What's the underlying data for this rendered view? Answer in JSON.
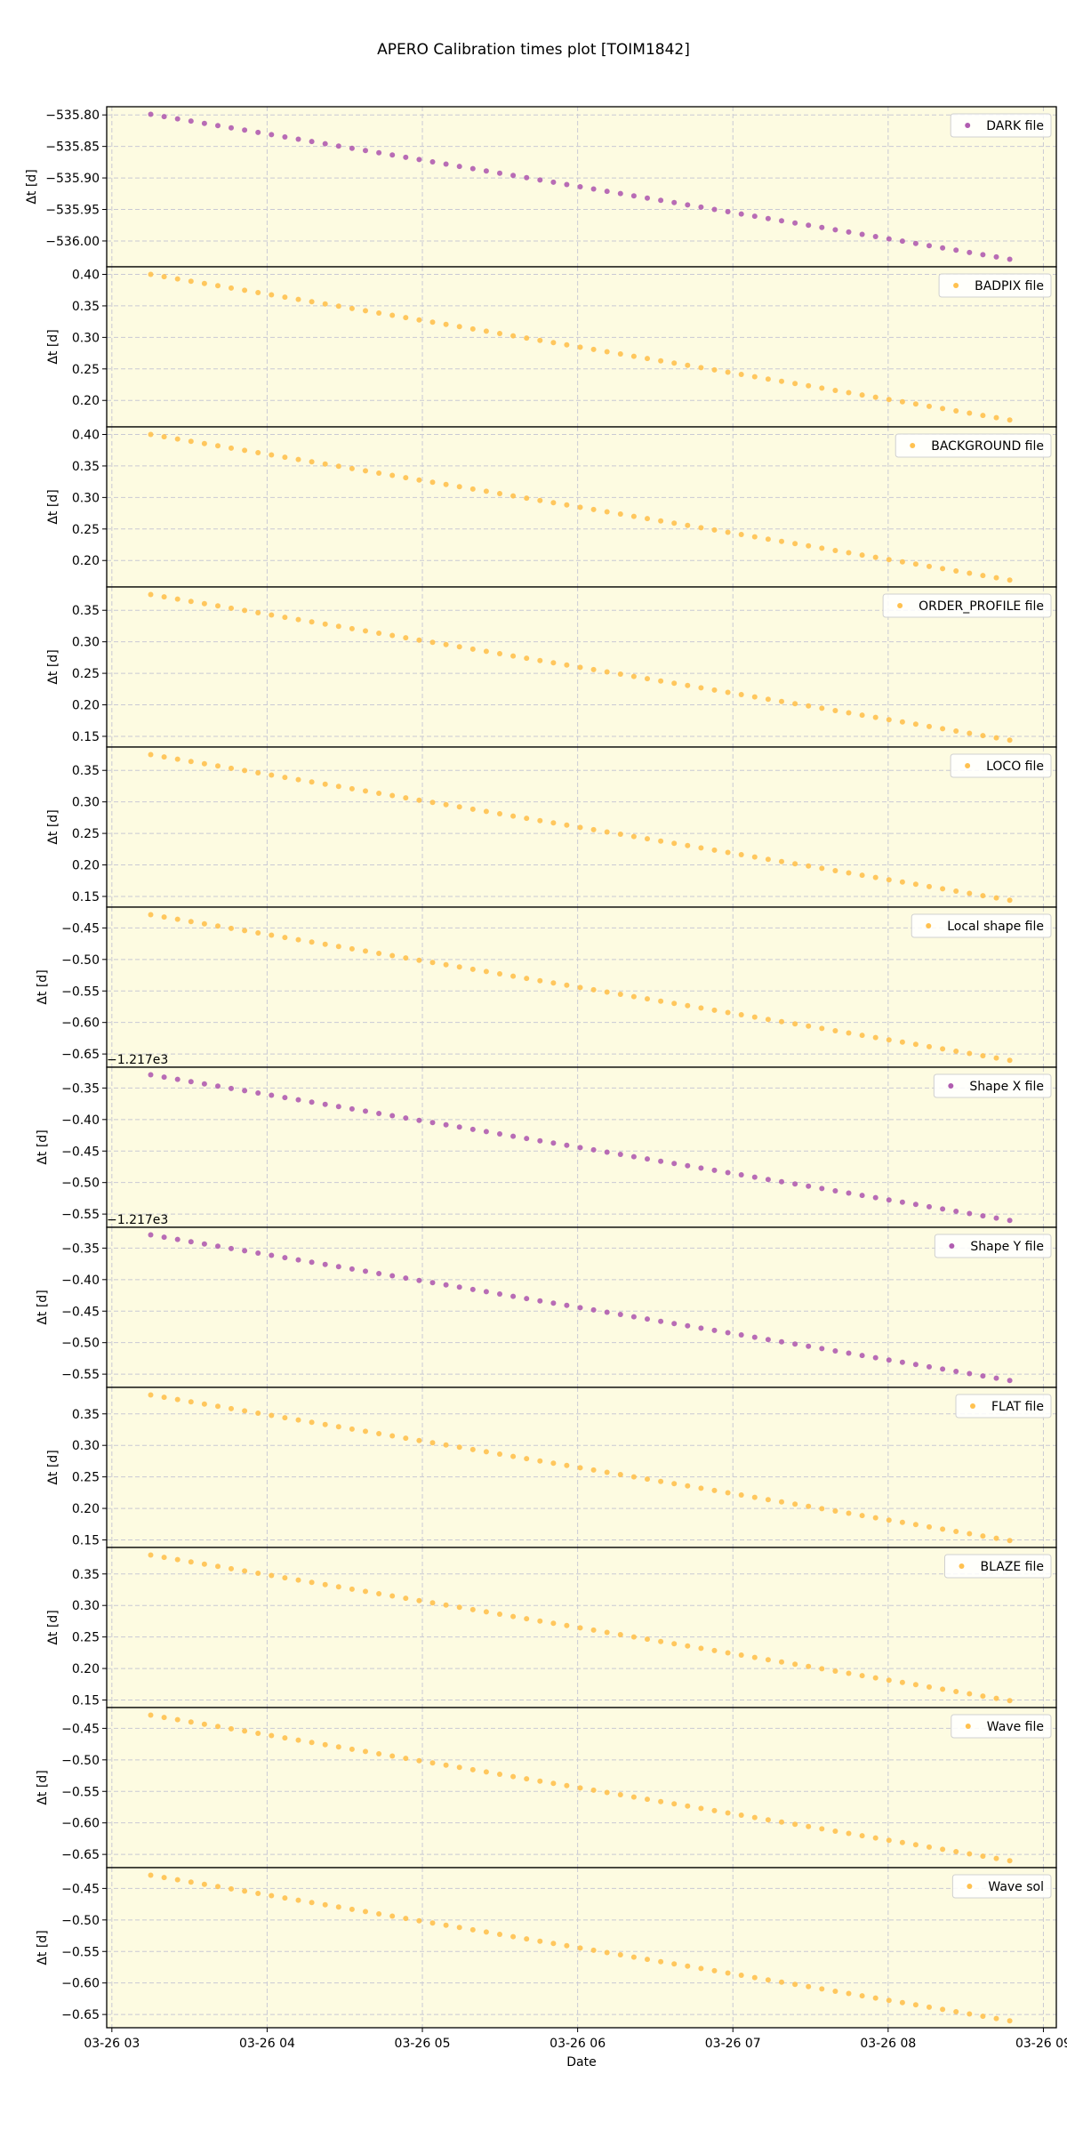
{
  "chart_data": {
    "type": "scatter",
    "title": "APERO Calibration times plot [TOIM1842]",
    "xlabel": "Date",
    "xlim": [
      "03-26 02:58",
      "03-26 09:05"
    ],
    "xticks": [
      "03-26 03",
      "03-26 04",
      "03-26 05",
      "03-26 06",
      "03-26 07",
      "03-26 08",
      "03-26 09"
    ],
    "x_first": "03-26 03:15",
    "x_last": "03-26 08:47",
    "n_points": 65,
    "grid": true,
    "legend_placement": "top-right",
    "background_color": "#fdfbe1",
    "colors": {
      "purple": "#b05cb0",
      "orange": "#ffc14f"
    },
    "panels": [
      {
        "name": "DARK file",
        "color": "purple",
        "ylabel": "Δt [d]",
        "y_first": -535.799,
        "y_last": -536.029,
        "ylim": [
          -536.041,
          -535.787
        ],
        "yticks": [
          -535.8,
          -535.85,
          -535.9,
          -535.95,
          -536.0
        ],
        "ytick_labels": [
          "−535.80",
          "−535.85",
          "−535.90",
          "−535.95",
          "−536.00"
        ],
        "offset": ""
      },
      {
        "name": "BADPIX file",
        "color": "orange",
        "ylabel": "Δt [d]",
        "y_first": 0.4,
        "y_last": 0.169,
        "ylim": [
          0.158,
          0.412
        ],
        "yticks": [
          0.4,
          0.35,
          0.3,
          0.25,
          0.2
        ],
        "ytick_labels": [
          "0.40",
          "0.35",
          "0.30",
          "0.25",
          "0.20"
        ],
        "offset": ""
      },
      {
        "name": "BACKGROUND file",
        "color": "orange",
        "ylabel": "Δt [d]",
        "y_first": 0.4,
        "y_last": 0.169,
        "ylim": [
          0.158,
          0.412
        ],
        "yticks": [
          0.4,
          0.35,
          0.3,
          0.25,
          0.2
        ],
        "ytick_labels": [
          "0.40",
          "0.35",
          "0.30",
          "0.25",
          "0.20"
        ],
        "offset": ""
      },
      {
        "name": "ORDER_PROFILE file",
        "color": "orange",
        "ylabel": "Δt [d]",
        "y_first": 0.375,
        "y_last": 0.144,
        "ylim": [
          0.133,
          0.387
        ],
        "yticks": [
          0.35,
          0.3,
          0.25,
          0.2,
          0.15
        ],
        "ytick_labels": [
          "0.35",
          "0.30",
          "0.25",
          "0.20",
          "0.15"
        ],
        "offset": ""
      },
      {
        "name": "LOCO file",
        "color": "orange",
        "ylabel": "Δt [d]",
        "y_first": 0.375,
        "y_last": 0.144,
        "ylim": [
          0.133,
          0.387
        ],
        "yticks": [
          0.35,
          0.3,
          0.25,
          0.2,
          0.15
        ],
        "ytick_labels": [
          "0.35",
          "0.30",
          "0.25",
          "0.20",
          "0.15"
        ],
        "offset": ""
      },
      {
        "name": "Local shape file",
        "color": "orange",
        "ylabel": "Δt [d]",
        "y_first": -0.429,
        "y_last": -0.66,
        "ylim": [
          -0.671,
          -0.417
        ],
        "yticks": [
          -0.45,
          -0.5,
          -0.55,
          -0.6,
          -0.65
        ],
        "ytick_labels": [
          "−0.45",
          "−0.50",
          "−0.55",
          "−0.60",
          "−0.65"
        ],
        "offset": ""
      },
      {
        "name": "Shape X file",
        "color": "purple",
        "ylabel": "Δt [d]",
        "y_first": -0.329,
        "y_last": -0.56,
        "ylim": [
          -0.571,
          -0.317
        ],
        "yticks": [
          -0.35,
          -0.4,
          -0.45,
          -0.5,
          -0.55
        ],
        "ytick_labels": [
          "−0.35",
          "−0.40",
          "−0.45",
          "−0.50",
          "−0.55"
        ],
        "offset": "−1.217e3"
      },
      {
        "name": "Shape Y file",
        "color": "purple",
        "ylabel": "Δt [d]",
        "y_first": -0.329,
        "y_last": -0.56,
        "ylim": [
          -0.571,
          -0.317
        ],
        "yticks": [
          -0.35,
          -0.4,
          -0.45,
          -0.5,
          -0.55
        ],
        "ytick_labels": [
          "−0.35",
          "−0.40",
          "−0.45",
          "−0.50",
          "−0.55"
        ],
        "offset": "−1.217e3"
      },
      {
        "name": "FLAT file",
        "color": "orange",
        "ylabel": "Δt [d]",
        "y_first": 0.38,
        "y_last": 0.149,
        "ylim": [
          0.138,
          0.392
        ],
        "yticks": [
          0.35,
          0.3,
          0.25,
          0.2,
          0.15
        ],
        "ytick_labels": [
          "0.35",
          "0.30",
          "0.25",
          "0.20",
          "0.15"
        ],
        "offset": ""
      },
      {
        "name": "BLAZE file",
        "color": "orange",
        "ylabel": "Δt [d]",
        "y_first": 0.38,
        "y_last": 0.149,
        "ylim": [
          0.138,
          0.392
        ],
        "yticks": [
          0.35,
          0.3,
          0.25,
          0.2,
          0.15
        ],
        "ytick_labels": [
          "0.35",
          "0.30",
          "0.25",
          "0.20",
          "0.15"
        ],
        "offset": ""
      },
      {
        "name": "Wave file",
        "color": "orange",
        "ylabel": "Δt [d]",
        "y_first": -0.429,
        "y_last": -0.66,
        "ylim": [
          -0.671,
          -0.417
        ],
        "yticks": [
          -0.45,
          -0.5,
          -0.55,
          -0.6,
          -0.65
        ],
        "ytick_labels": [
          "−0.45",
          "−0.50",
          "−0.55",
          "−0.60",
          "−0.65"
        ],
        "offset": ""
      },
      {
        "name": "Wave sol",
        "color": "orange",
        "ylabel": "Δt [d]",
        "y_first": -0.429,
        "y_last": -0.66,
        "ylim": [
          -0.671,
          -0.417
        ],
        "yticks": [
          -0.45,
          -0.5,
          -0.55,
          -0.6,
          -0.65
        ],
        "ytick_labels": [
          "−0.45",
          "−0.50",
          "−0.55",
          "−0.60",
          "−0.65"
        ],
        "offset": ""
      }
    ]
  }
}
